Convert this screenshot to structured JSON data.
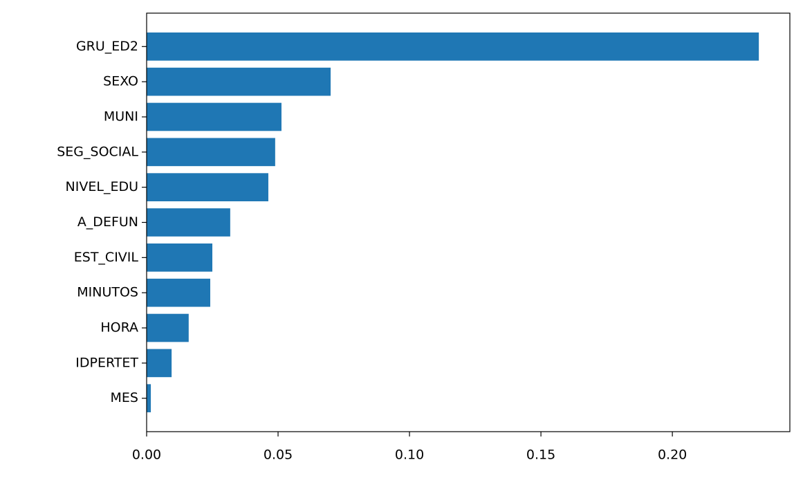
{
  "chart_data": {
    "type": "barh",
    "categories": [
      "GRU_ED2",
      "SEXO",
      "MUNI",
      "SEG_SOCIAL",
      "NIVEL_EDU",
      "A_DEFUN",
      "EST_CIVIL",
      "MINUTOS",
      "HORA",
      "IDPERTET",
      "MES"
    ],
    "values": [
      0.2329,
      0.07,
      0.0513,
      0.0489,
      0.0463,
      0.0318,
      0.025,
      0.0242,
      0.016,
      0.0095,
      0.0016
    ],
    "color": "#1f77b4",
    "xlim": [
      0,
      0.2447
    ],
    "xticks": [
      {
        "value": 0,
        "label": "0.00"
      },
      {
        "value": 0.05,
        "label": "0.05"
      },
      {
        "value": 0.1,
        "label": "0.10"
      },
      {
        "value": 0.15,
        "label": "0.15"
      },
      {
        "value": 0.2,
        "label": "0.20"
      }
    ],
    "grid": false
  }
}
